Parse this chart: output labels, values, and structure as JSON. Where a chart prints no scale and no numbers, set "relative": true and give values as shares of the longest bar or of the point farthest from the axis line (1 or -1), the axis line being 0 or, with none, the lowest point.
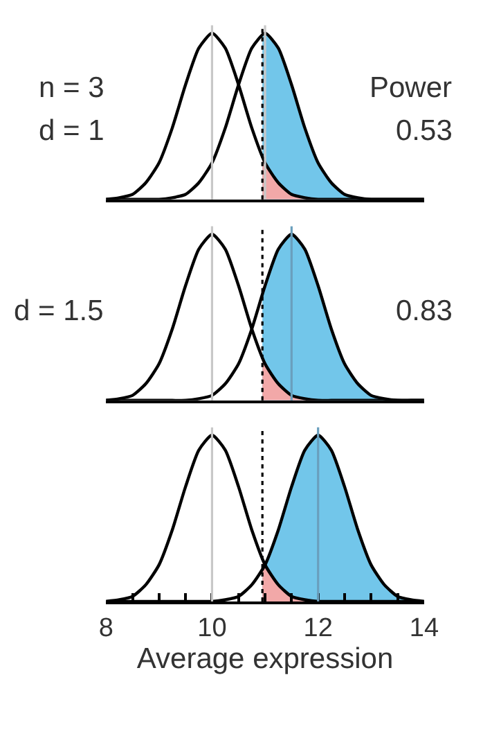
{
  "chart_data": [
    {
      "type": "line",
      "relative": true,
      "xlim": [
        8,
        14
      ],
      "tick_labels": false,
      "marker": "none",
      "x": [
        8,
        8.25,
        8.5,
        8.75,
        9,
        9.25,
        9.5,
        9.75,
        10,
        10.25,
        10.5,
        10.75,
        11,
        11.25,
        11.5,
        11.75,
        12,
        12.25,
        12.5,
        12.75,
        13,
        13.25,
        13.5,
        13.75,
        14
      ],
      "series": [
        {
          "type": "area",
          "color": "#72c6ea",
          "x": [
            10.95,
            11,
            11.25,
            11.5,
            11.75,
            12,
            12.25,
            12.5,
            12.75,
            13,
            13.25,
            13.5,
            13.75,
            14
          ],
          "values": [
            1,
            1,
            0.91,
            0.69,
            0.43,
            0.22,
            0.1,
            0.03,
            0.01,
            0,
            0,
            0,
            0,
            0
          ]
        },
        {
          "type": "area",
          "color": "#f2a8a8",
          "x": [
            10.95,
            11,
            11.25,
            11.5,
            11.75,
            12
          ],
          "values": [
            0.26,
            0.22,
            0.1,
            0.03,
            0.01,
            0
          ]
        },
        {
          "color": "#000000",
          "values": [
            0,
            0.01,
            0.03,
            0.1,
            0.22,
            0.43,
            0.69,
            0.91,
            1,
            0.91,
            0.69,
            0.43,
            0.22,
            0.1,
            0.03,
            0.01,
            0,
            0,
            0,
            0,
            0,
            0,
            0,
            0,
            0
          ]
        },
        {
          "color": "#000000",
          "values": [
            0,
            0,
            0,
            0,
            0,
            0.01,
            0.03,
            0.1,
            0.22,
            0.43,
            0.69,
            0.91,
            1,
            0.91,
            0.69,
            0.43,
            0.22,
            0.1,
            0.03,
            0.01,
            0,
            0,
            0,
            0,
            0
          ]
        }
      ],
      "ref_lines": [
        {
          "axis": "x",
          "value": 10,
          "color": "#c8c8c8",
          "line_style": "solid"
        },
        {
          "axis": "x",
          "value": 11,
          "color": "#c8c8c8",
          "line_style": "solid"
        },
        {
          "axis": "x",
          "value": 10.95,
          "color": "#000000",
          "line_style": "dotted"
        }
      ],
      "annotations": [
        "n = 3",
        "d = 1",
        "Power",
        "0.53"
      ]
    },
    {
      "type": "line",
      "relative": true,
      "xlim": [
        8,
        14
      ],
      "tick_labels": false,
      "marker": "none",
      "x": [
        8,
        8.25,
        8.5,
        8.75,
        9,
        9.25,
        9.5,
        9.75,
        10,
        10.25,
        10.5,
        10.75,
        11,
        11.25,
        11.5,
        11.75,
        12,
        12.25,
        12.5,
        12.75,
        13,
        13.25,
        13.5,
        13.75,
        14
      ],
      "series": [
        {
          "type": "area",
          "color": "#72c6ea",
          "x": [
            10.95,
            11,
            11.25,
            11.5,
            11.75,
            12,
            12.25,
            12.5,
            12.75,
            13,
            13.25,
            13.5,
            13.75,
            14
          ],
          "values": [
            0.64,
            0.69,
            0.91,
            1,
            0.91,
            0.69,
            0.43,
            0.22,
            0.1,
            0.03,
            0.01,
            0,
            0,
            0
          ]
        },
        {
          "type": "area",
          "color": "#f2a8a8",
          "x": [
            10.95,
            11,
            11.25,
            11.5,
            11.75,
            12
          ],
          "values": [
            0.26,
            0.22,
            0.1,
            0.03,
            0.01,
            0
          ]
        },
        {
          "color": "#000000",
          "values": [
            0,
            0.01,
            0.03,
            0.1,
            0.22,
            0.43,
            0.69,
            0.91,
            1,
            0.91,
            0.69,
            0.43,
            0.22,
            0.1,
            0.03,
            0.01,
            0,
            0,
            0,
            0,
            0,
            0,
            0,
            0,
            0
          ]
        },
        {
          "color": "#000000",
          "values": [
            0,
            0,
            0,
            0,
            0,
            0,
            0,
            0.01,
            0.03,
            0.1,
            0.22,
            0.43,
            0.69,
            0.91,
            1,
            0.91,
            0.69,
            0.43,
            0.22,
            0.1,
            0.03,
            0.01,
            0,
            0,
            0
          ]
        }
      ],
      "ref_lines": [
        {
          "axis": "x",
          "value": 10,
          "color": "#c8c8c8",
          "line_style": "solid"
        },
        {
          "axis": "x",
          "value": 11.5,
          "color": "#6a9fbd",
          "line_style": "solid"
        },
        {
          "axis": "x",
          "value": 10.95,
          "color": "#000000",
          "line_style": "dotted"
        }
      ],
      "annotations": [
        "d = 1.5",
        "0.83"
      ]
    },
    {
      "type": "line",
      "relative": true,
      "xlim": [
        8,
        14
      ],
      "marker": "none",
      "tick_labels": "x",
      "xticks": [
        8,
        {
          "value": 8.5,
          "label": null
        },
        {
          "value": 9,
          "label": null
        },
        {
          "value": 9.5,
          "label": null
        },
        10,
        {
          "value": 10.5,
          "label": null
        },
        {
          "value": 11,
          "label": null
        },
        {
          "value": 11.5,
          "label": null
        },
        12,
        {
          "value": 12.5,
          "label": null
        },
        {
          "value": 13,
          "label": null
        },
        {
          "value": 13.5,
          "label": null
        },
        14
      ],
      "xlabel": "Average expression",
      "x": [
        8,
        8.25,
        8.5,
        8.75,
        9,
        9.25,
        9.5,
        9.75,
        10,
        10.25,
        10.5,
        10.75,
        11,
        11.25,
        11.5,
        11.75,
        12,
        12.25,
        12.5,
        12.75,
        13,
        13.25,
        13.5,
        13.75,
        14
      ],
      "series": [
        {
          "type": "area",
          "color": "#72c6ea",
          "x": [
            10.95,
            11,
            11.25,
            11.5,
            11.75,
            12,
            12.25,
            12.5,
            12.75,
            13,
            13.25,
            13.5,
            13.75,
            14
          ],
          "values": [
            0.19,
            0.22,
            0.43,
            0.69,
            0.91,
            1,
            0.91,
            0.69,
            0.43,
            0.22,
            0.1,
            0.03,
            0.01,
            0
          ]
        },
        {
          "type": "area",
          "color": "#f2a8a8",
          "x": [
            10.95,
            11,
            11.25,
            11.5,
            11.75,
            12
          ],
          "values": [
            0.26,
            0.22,
            0.1,
            0.03,
            0.01,
            0
          ]
        },
        {
          "color": "#000000",
          "values": [
            0,
            0.01,
            0.03,
            0.1,
            0.22,
            0.43,
            0.69,
            0.91,
            1,
            0.91,
            0.69,
            0.43,
            0.22,
            0.1,
            0.03,
            0.01,
            0,
            0,
            0,
            0,
            0,
            0,
            0,
            0,
            0
          ]
        },
        {
          "color": "#000000",
          "values": [
            0,
            0,
            0,
            0,
            0,
            0,
            0,
            0,
            0,
            0.01,
            0.03,
            0.1,
            0.22,
            0.43,
            0.69,
            0.91,
            1,
            0.91,
            0.69,
            0.43,
            0.22,
            0.1,
            0.03,
            0.01,
            0
          ]
        }
      ],
      "ref_lines": [
        {
          "axis": "x",
          "value": 10,
          "color": "#c8c8c8",
          "line_style": "solid"
        },
        {
          "axis": "x",
          "value": 12,
          "color": "#6a9fbd",
          "line_style": "solid"
        },
        {
          "axis": "x",
          "value": 10.95,
          "color": "#000000",
          "line_style": "dotted"
        }
      ]
    }
  ]
}
